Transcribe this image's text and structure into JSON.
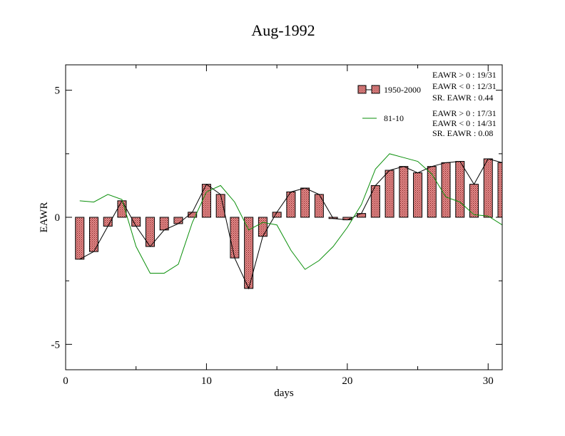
{
  "chart_data": {
    "type": "bar",
    "title": "Aug-1992",
    "xlabel": "days",
    "ylabel": "EAWR",
    "xlim": [
      0,
      31
    ],
    "ylim": [
      -6,
      6
    ],
    "xticks": [
      0,
      10,
      20,
      30
    ],
    "yticks": [
      -5,
      0,
      5
    ],
    "x": [
      1,
      2,
      3,
      4,
      5,
      6,
      7,
      8,
      9,
      10,
      11,
      12,
      13,
      14,
      15,
      16,
      17,
      18,
      19,
      20,
      21,
      22,
      23,
      24,
      25,
      26,
      27,
      28,
      29,
      30,
      31
    ],
    "series": [
      {
        "name": "1950-2000",
        "style": "bar+line",
        "color": "#d9706f",
        "values": [
          -1.65,
          -1.35,
          -0.35,
          0.65,
          -0.35,
          -1.15,
          -0.5,
          -0.25,
          0.2,
          1.3,
          0.9,
          -1.6,
          -2.8,
          -0.75,
          0.2,
          1.0,
          1.15,
          0.9,
          -0.05,
          -0.1,
          0.15,
          1.25,
          1.85,
          2.0,
          1.75,
          2.0,
          2.15,
          2.2,
          1.3,
          2.3,
          2.15
        ]
      },
      {
        "name": "81-10",
        "style": "line",
        "color": "#0a8f0a",
        "values": [
          0.65,
          0.6,
          0.9,
          0.7,
          -1.15,
          -2.2,
          -2.2,
          -1.85,
          -0.2,
          1.0,
          1.25,
          0.6,
          -0.5,
          -0.2,
          -0.3,
          -1.3,
          -2.05,
          -1.7,
          -1.15,
          -0.4,
          0.5,
          1.9,
          2.5,
          2.35,
          2.2,
          1.7,
          0.8,
          0.6,
          0.1,
          0.05,
          -0.3
        ]
      }
    ],
    "stats": [
      [
        "EAWR > 0 : 19/31",
        "EAWR < 0 : 12/31",
        "SR. EAWR :  0.44"
      ],
      [
        "EAWR > 0 : 17/31",
        "EAWR < 0 : 14/31",
        "SR. EAWR :  0.08"
      ]
    ],
    "legend_position": "top-right",
    "grid": false
  }
}
